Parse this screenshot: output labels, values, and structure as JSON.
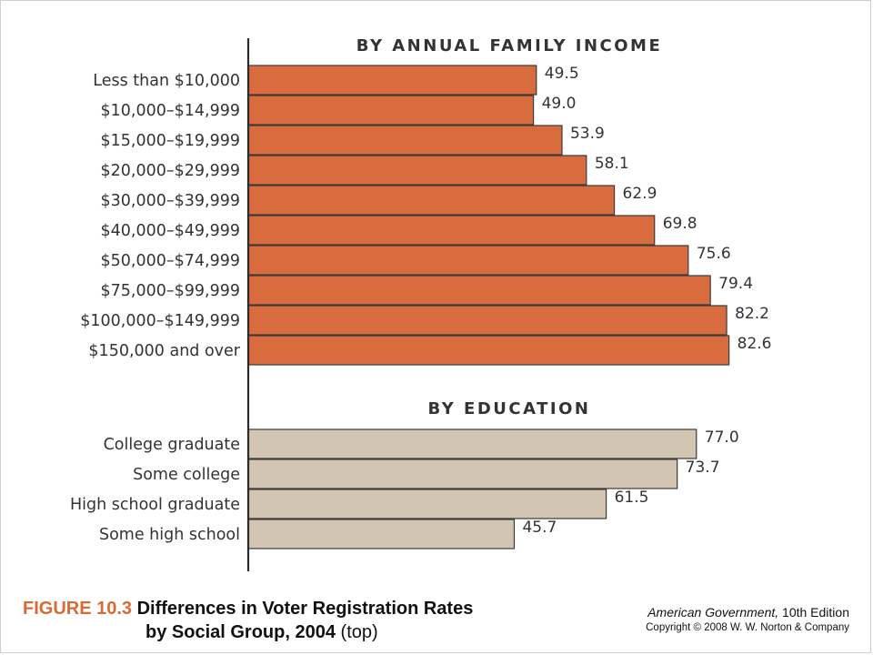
{
  "chart_data": {
    "type": "bar",
    "orientation": "horizontal",
    "xlim": [
      0,
      100
    ],
    "panels": [
      {
        "title": "BY ANNUAL FAMILY INCOME",
        "color": "#d96c3f",
        "categories": [
          "Less than $10,000",
          "$10,000–$14,999",
          "$15,000–$19,999",
          "$20,000–$29,999",
          "$30,000–$39,999",
          "$40,000–$49,999",
          "$50,000–$74,999",
          "$75,000–$99,999",
          "$100,000–$149,999",
          "$150,000 and over"
        ],
        "values": [
          49.5,
          49.0,
          53.9,
          58.1,
          62.9,
          69.8,
          75.6,
          79.4,
          82.2,
          82.6
        ],
        "labels": [
          "49.5",
          "49.0",
          "53.9",
          "58.1",
          "62.9",
          "69.8",
          "75.6",
          "79.4",
          "82.2",
          "82.6"
        ]
      },
      {
        "title": "BY EDUCATION",
        "color": "#d2c6b3",
        "categories": [
          "College graduate",
          "Some college",
          "High school graduate",
          "Some high school"
        ],
        "values": [
          77.0,
          73.7,
          61.5,
          45.7
        ],
        "labels": [
          "77.0",
          "73.7",
          "61.5",
          "45.7"
        ]
      }
    ]
  },
  "caption": {
    "figure_number": "FIGURE 10.3",
    "title_line1": "Differences in Voter Registration Rates",
    "title_line2": "by Social Group, 2004",
    "suffix": "(top)"
  },
  "credit": {
    "book_title": "American Government,",
    "edition": "10th Edition",
    "copyright": "Copyright © 2008 W. W. Norton & Company"
  }
}
